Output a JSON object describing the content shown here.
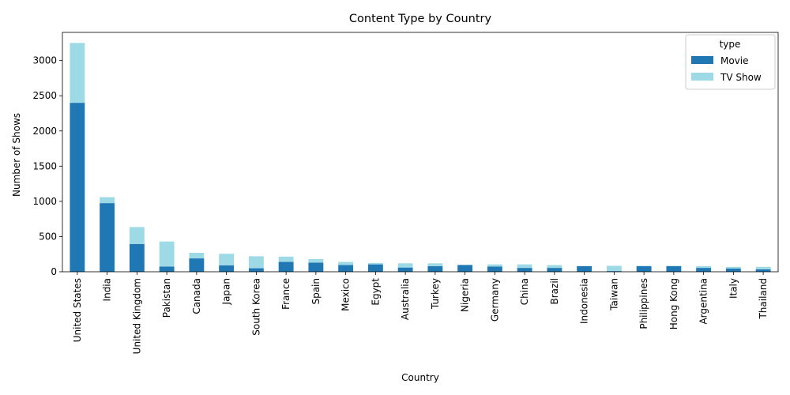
{
  "chart_data": {
    "type": "bar",
    "stacked": true,
    "title": "Content Type by Country",
    "xlabel": "Country",
    "ylabel": "Number of Shows",
    "ylim": [
      0,
      3400
    ],
    "yticks": [
      0,
      500,
      1000,
      1500,
      2000,
      2500,
      3000
    ],
    "grid": false,
    "legend": {
      "title": "type",
      "position": "top-right"
    },
    "categories": [
      "United States",
      "India",
      "United Kingdom",
      "Pakistan",
      "Canada",
      "Japan",
      "South Korea",
      "France",
      "Spain",
      "Mexico",
      "Egypt",
      "Australia",
      "Turkey",
      "Nigeria",
      "Germany",
      "China",
      "Brazil",
      "Indonesia",
      "Taiwan",
      "Philippines",
      "Hong Kong",
      "Argentina",
      "Italy",
      "Thailand"
    ],
    "series": [
      {
        "name": "Movie",
        "color": "#1f77b4",
        "values": [
          2400,
          975,
          395,
          75,
          190,
          90,
          50,
          140,
          130,
          95,
          105,
          60,
          80,
          95,
          75,
          55,
          55,
          80,
          10,
          80,
          80,
          55,
          45,
          35
        ]
      },
      {
        "name": "TV Show",
        "color": "#9edae5",
        "values": [
          850,
          85,
          240,
          355,
          80,
          165,
          170,
          75,
          50,
          45,
          20,
          60,
          40,
          5,
          30,
          50,
          40,
          0,
          75,
          5,
          5,
          25,
          25,
          35
        ]
      }
    ]
  }
}
